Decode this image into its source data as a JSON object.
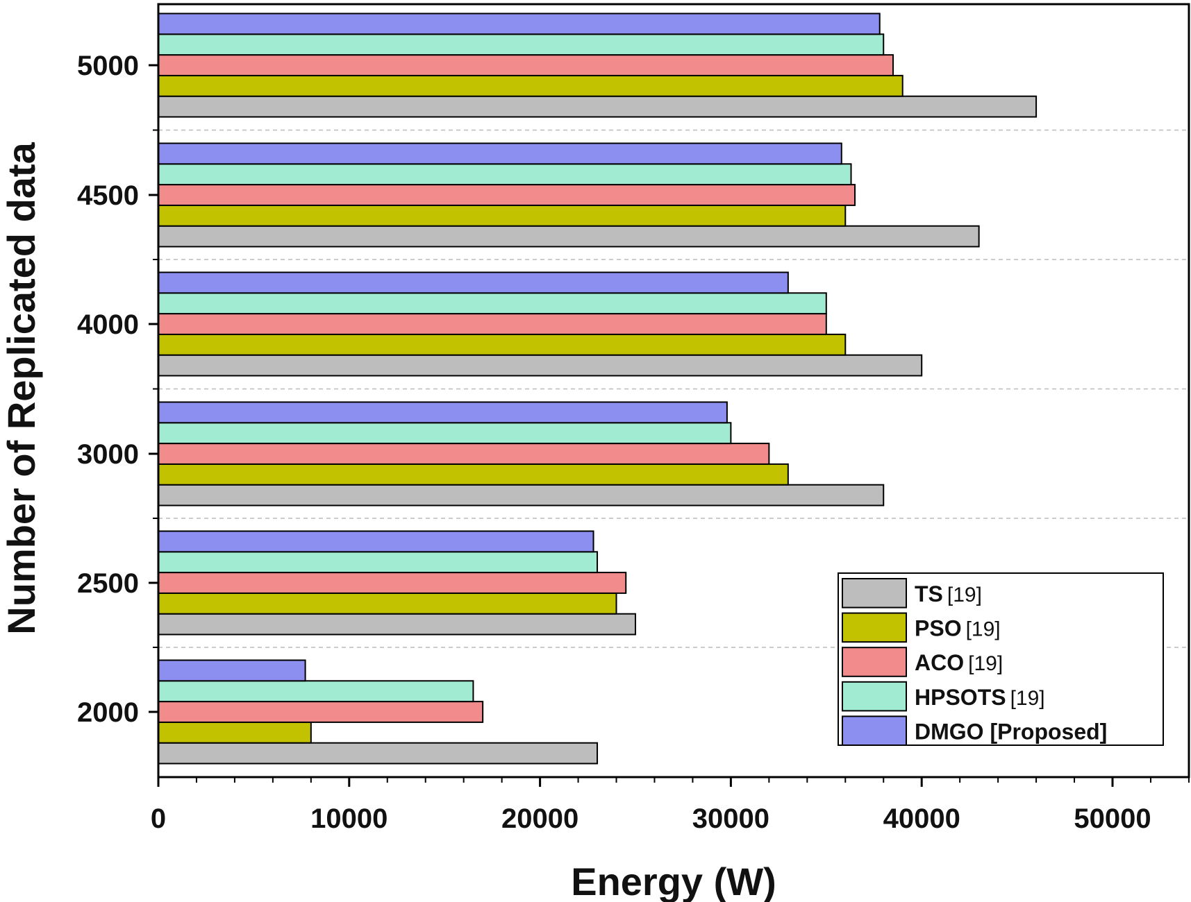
{
  "chart_data": {
    "type": "bar",
    "orientation": "horizontal",
    "title": "",
    "xlabel": "Energy (W)",
    "ylabel": "Number of Replicated data",
    "xlim": [
      0,
      54000
    ],
    "x_ticks": [
      "0",
      "10000",
      "20000",
      "30000",
      "40000",
      "50000"
    ],
    "categories": [
      "2000",
      "2500",
      "3000",
      "4000",
      "4500",
      "5000"
    ],
    "series": [
      {
        "name": "TS",
        "ref": "[19]",
        "color": "#bdbdbd",
        "values": [
          23000,
          25000,
          38000,
          40000,
          43000,
          46000
        ]
      },
      {
        "name": "PSO",
        "ref": "[19]",
        "color": "#c2c200",
        "values": [
          8000,
          24000,
          33000,
          36000,
          36000,
          39000
        ]
      },
      {
        "name": "ACO",
        "ref": "[19]",
        "color": "#f28c8c",
        "values": [
          17000,
          24500,
          32000,
          35000,
          36500,
          38500
        ]
      },
      {
        "name": "HPSOTS",
        "ref": "[19]",
        "color": "#a2ebd3",
        "values": [
          16500,
          23000,
          30000,
          35000,
          36300,
          38000
        ]
      },
      {
        "name": "DMGO [Proposed]",
        "ref": "",
        "color": "#8c8ff0",
        "values": [
          7700,
          22800,
          29800,
          33000,
          35800,
          37800
        ]
      }
    ],
    "grid": "dashed horizontal separators between groups",
    "legend_position": "bottom-right"
  }
}
